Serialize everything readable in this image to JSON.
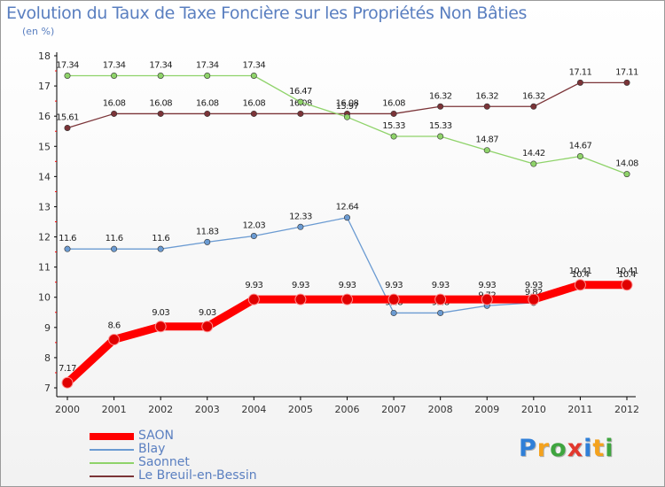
{
  "header": {
    "title": "Evolution du Taux de Taxe Foncière sur les Propriétés Non Bâties",
    "unit": "(en %)"
  },
  "logo": {
    "text": "Proxiti",
    "letters": [
      "P",
      "r",
      "o",
      "x",
      "i",
      "t",
      "i"
    ],
    "colors": [
      "#2f7fd8",
      "#f4a21d",
      "#3fa53f",
      "#e2382e",
      "#2f7fd8",
      "#f4a21d",
      "#3fa53f"
    ]
  },
  "chart_data": {
    "type": "line",
    "title": "Evolution du Taux de Taxe Foncière sur les Propriétés Non Bâties",
    "ylabel": "(en %)",
    "xlabel": "",
    "x": [
      "2000",
      "2001",
      "2002",
      "2003",
      "2004",
      "2005",
      "2006",
      "2007",
      "2008",
      "2009",
      "2010",
      "2011",
      "2012"
    ],
    "ylim": [
      7,
      18
    ],
    "yticks": [
      7,
      8,
      9,
      10,
      11,
      12,
      13,
      14,
      15,
      16,
      17,
      18
    ],
    "grid": false,
    "legend_position": "bottom-left",
    "series": [
      {
        "name": "SAON",
        "color": "#ff0000",
        "values": [
          7.17,
          8.6,
          9.03,
          9.03,
          9.93,
          9.93,
          9.93,
          9.93,
          9.93,
          9.93,
          9.93,
          10.41,
          10.41
        ],
        "labels": [
          "7.17",
          "8.6",
          "9.03",
          "9.03",
          "9.93",
          "9.93",
          "9.93",
          "9.93",
          "9.93",
          "9.93",
          "9.93",
          "10.41",
          "10.41"
        ]
      },
      {
        "name": "Blay",
        "color": "#6b9bd2",
        "values": [
          11.6,
          11.6,
          11.6,
          11.83,
          12.03,
          12.33,
          12.64,
          9.48,
          9.48,
          9.72,
          9.82,
          10.4,
          10.4
        ],
        "labels": [
          "11.6",
          "11.6",
          "11.6",
          "11.83",
          "12.03",
          "12.33",
          "12.64",
          "9.48",
          "9.48",
          "9.72",
          "9.82",
          "10.4",
          "10.4"
        ]
      },
      {
        "name": "Saonnet",
        "color": "#8fd36a",
        "values": [
          17.34,
          17.34,
          17.34,
          17.34,
          17.34,
          16.47,
          15.97,
          15.33,
          15.33,
          14.87,
          14.42,
          14.67,
          14.08
        ],
        "labels": [
          "17.34",
          "17.34",
          "17.34",
          "17.34",
          "17.34",
          "16.47",
          "15.97",
          "15.33",
          "15.33",
          "14.87",
          "14.42",
          "14.67",
          "14.08"
        ]
      },
      {
        "name": "Le Breuil-en-Bessin",
        "color": "#7b3438",
        "values": [
          15.61,
          16.08,
          16.08,
          16.08,
          16.08,
          16.08,
          16.08,
          16.08,
          16.32,
          16.32,
          16.32,
          17.11,
          17.11
        ],
        "labels": [
          "15.61",
          "16.08",
          "16.08",
          "16.08",
          "16.08",
          "16.08",
          "16.08",
          "16.08",
          "16.32",
          "16.32",
          "16.32",
          "17.11",
          "17.11"
        ]
      }
    ]
  }
}
